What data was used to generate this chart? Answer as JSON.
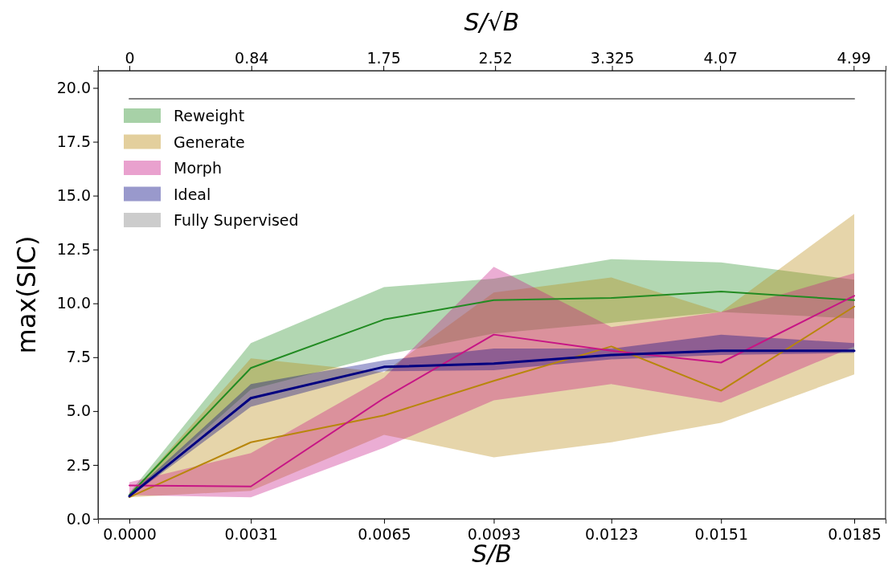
{
  "chart_data": {
    "type": "line",
    "xlabel": "S/B",
    "ylabel": "max(SIC)",
    "x2label": "S/√B",
    "x": [
      0,
      0.0031,
      0.0065,
      0.0093,
      0.0123,
      0.0151,
      0.0185
    ],
    "xlim": [
      -0.0008,
      0.0193
    ],
    "xticks": [
      {
        "value": 0,
        "label": "0.0000"
      },
      {
        "value": 0.0031,
        "label": "0.0031"
      },
      {
        "value": 0.0065,
        "label": "0.0065"
      },
      {
        "value": 0.0093,
        "label": "0.0093"
      },
      {
        "value": 0.0123,
        "label": "0.0123"
      },
      {
        "value": 0.0151,
        "label": "0.0151"
      },
      {
        "value": 0.0185,
        "label": "0.0185"
      }
    ],
    "x2lim": [
      -0.216,
      5.21
    ],
    "x2ticks": [
      0,
      0.84,
      1.75,
      2.52,
      3.325,
      4.07,
      4.99
    ],
    "ylim": [
      0,
      20.8
    ],
    "yticks": [
      {
        "value": 0,
        "label": "0.0"
      },
      {
        "value": 2.5,
        "label": "2.5"
      },
      {
        "value": 5,
        "label": "5.0"
      },
      {
        "value": 7.5,
        "label": "7.5"
      },
      {
        "value": 10,
        "label": "10.0"
      },
      {
        "value": 12.5,
        "label": "12.5"
      },
      {
        "value": 15,
        "label": "15.0"
      },
      {
        "value": 17.5,
        "label": "17.5"
      },
      {
        "value": 20,
        "label": "20.0"
      }
    ],
    "grid": false,
    "legend": "top left",
    "marker": "none",
    "line_style": "solid",
    "series": [
      {
        "name": "Reweight",
        "color": "#228b22",
        "values": [
          1.1,
          7.0,
          9.25,
          10.15,
          10.25,
          10.55,
          10.15
        ],
        "lower": [
          1.0,
          6.0,
          7.6,
          8.6,
          9.1,
          9.6,
          9.3
        ],
        "upper": [
          1.2,
          8.15,
          10.75,
          11.15,
          12.05,
          11.9,
          11.1
        ]
      },
      {
        "name": "Generate",
        "color": "#b8860b",
        "values": [
          1.0,
          3.55,
          4.8,
          6.4,
          8.0,
          5.95,
          9.85
        ],
        "lower": [
          1.0,
          1.3,
          3.9,
          2.85,
          3.55,
          4.45,
          6.7
        ],
        "upper": [
          1.1,
          7.45,
          6.8,
          10.5,
          11.2,
          9.6,
          14.15
        ]
      },
      {
        "name": "Morph",
        "color": "#c71585",
        "values": [
          1.55,
          1.5,
          5.6,
          8.55,
          7.8,
          7.25,
          10.35
        ],
        "lower": [
          1.1,
          1.0,
          3.3,
          5.5,
          6.25,
          5.4,
          8.0
        ],
        "upper": [
          1.7,
          3.05,
          6.55,
          11.7,
          8.9,
          9.6,
          11.4
        ]
      },
      {
        "name": "Ideal",
        "color": "#000080",
        "values": [
          1.05,
          5.6,
          7.05,
          7.2,
          7.6,
          7.8,
          7.8
        ],
        "lower": [
          1.0,
          5.2,
          6.85,
          6.9,
          7.4,
          7.6,
          7.7
        ],
        "upper": [
          1.1,
          6.25,
          7.35,
          7.9,
          7.9,
          8.55,
          8.15
        ]
      },
      {
        "name": "Fully Supervised",
        "color": "#808080",
        "values": [
          19.5,
          19.5,
          19.5,
          19.5,
          19.5,
          19.5,
          19.5
        ]
      }
    ]
  }
}
